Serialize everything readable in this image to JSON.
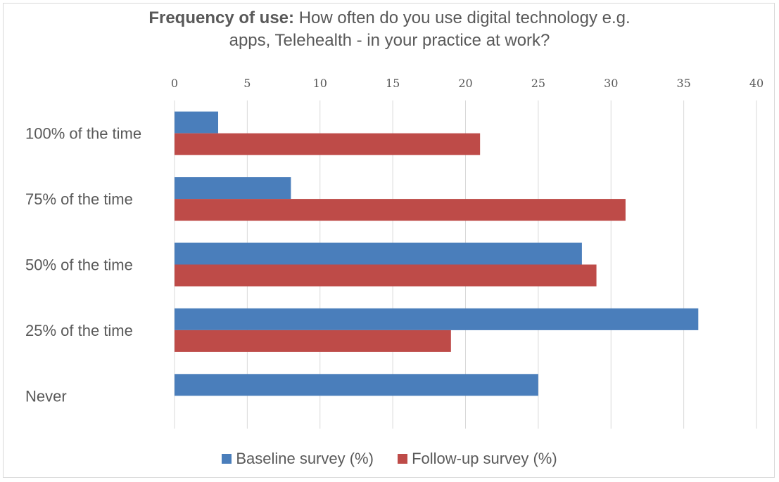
{
  "chart_data": {
    "type": "bar",
    "orientation": "horizontal",
    "title_bold": "Frequency of use:",
    "title_rest_line1": " How often do you use digital technology e.g.",
    "title_line2": "apps, Telehealth - in your practice at work?",
    "categories": [
      "100% of the time",
      "75% of the time",
      "50% of the time",
      "25% of the time",
      "Never"
    ],
    "series": [
      {
        "name": "Baseline survey (%)",
        "color": "#4a7ebb",
        "values": [
          3,
          8,
          28,
          36,
          25
        ]
      },
      {
        "name": "Follow-up survey (%)",
        "color": "#be4b48",
        "values": [
          21,
          31,
          29,
          19,
          0
        ]
      }
    ],
    "xlim": [
      0,
      40
    ],
    "xticks": [
      "0",
      "5",
      "10",
      "15",
      "20",
      "25",
      "30",
      "35",
      "40"
    ],
    "x_axis_position": "top",
    "grid": true,
    "legend_position": "bottom"
  }
}
